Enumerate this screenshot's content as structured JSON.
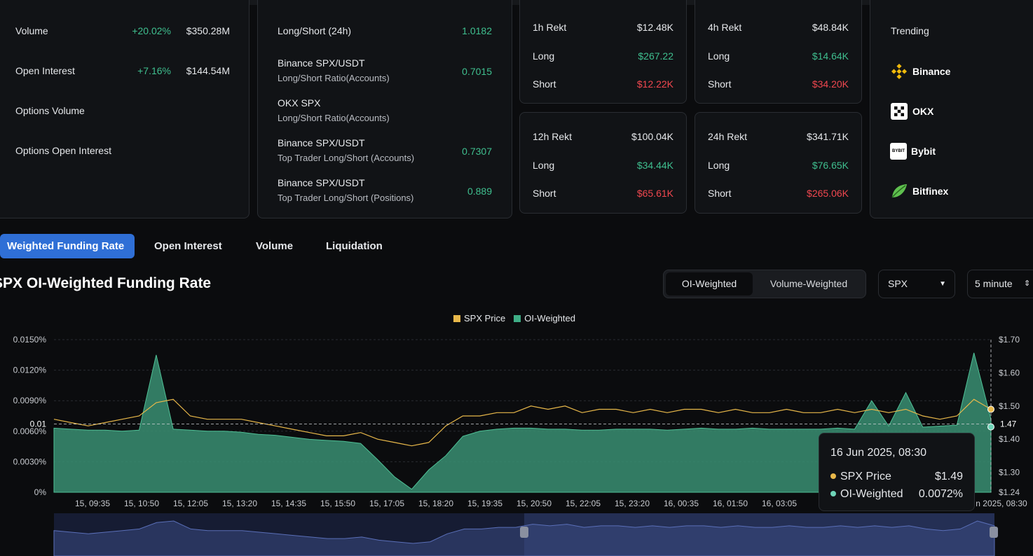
{
  "stats": {
    "rows": [
      {
        "name": "Volume",
        "change": "+20.02%",
        "value": "$350.28M"
      },
      {
        "name": "Open Interest",
        "change": "+7.16%",
        "value": "$144.54M"
      },
      {
        "name": "Options Volume",
        "change": "",
        "value": ""
      },
      {
        "name": "Options Open Interest",
        "change": "",
        "value": ""
      }
    ]
  },
  "long_short": {
    "rows": [
      {
        "line1": "Long/Short (24h)",
        "line2": "",
        "value": "1.0182"
      },
      {
        "line1": "Binance SPX/USDT",
        "line2": "Long/Short Ratio(Accounts)",
        "value": "0.7015"
      },
      {
        "line1": "OKX SPX",
        "line2": "Long/Short Ratio(Accounts)",
        "value": ""
      },
      {
        "line1": "Binance SPX/USDT",
        "line2": "Top Trader Long/Short (Accounts)",
        "value": "0.7307"
      },
      {
        "line1": "Binance SPX/USDT",
        "line2": "Top Trader Long/Short (Positions)",
        "value": "0.889"
      }
    ]
  },
  "rekt": {
    "r1h": {
      "title": "1h Rekt",
      "total": "$12.48K",
      "long_label": "Long",
      "long": "$267.22",
      "short_label": "Short",
      "short": "$12.22K"
    },
    "r4h": {
      "title": "4h Rekt",
      "total": "$48.84K",
      "long_label": "Long",
      "long": "$14.64K",
      "short_label": "Short",
      "short": "$34.20K"
    },
    "r12h": {
      "title": "12h Rekt",
      "total": "$100.04K",
      "long_label": "Long",
      "long": "$34.44K",
      "short_label": "Short",
      "short": "$65.61K"
    },
    "r24h": {
      "title": "24h Rekt",
      "total": "$341.71K",
      "long_label": "Long",
      "long": "$76.65K",
      "short_label": "Short",
      "short": "$265.06K"
    }
  },
  "trending": {
    "title": "Trending",
    "items": [
      {
        "name": "Binance",
        "icon": "binance-icon"
      },
      {
        "name": "OKX",
        "icon": "okx-icon"
      },
      {
        "name": "Bybit",
        "icon": "bybit-icon",
        "icon_text": "BYBIT"
      },
      {
        "name": "Bitfinex",
        "icon": "bitfinex-icon"
      }
    ]
  },
  "tabs": [
    {
      "label": "Weighted Funding Rate",
      "active": true
    },
    {
      "label": "Open Interest",
      "active": false
    },
    {
      "label": "Volume",
      "active": false
    },
    {
      "label": "Liquidation",
      "active": false
    }
  ],
  "chart_header": {
    "title": "SPX OI-Weighted Funding Rate",
    "seg_on": "OI-Weighted",
    "seg_off": "Volume-Weighted",
    "symbol": "SPX",
    "interval": "5 minute"
  },
  "colors": {
    "price": "#e8b84a",
    "oi": "#3fae86",
    "accent": "#2f6fd6",
    "green": "#3fbf8f",
    "red": "#f0474f"
  },
  "tooltip": {
    "date": "16 Jun 2025, 08:30",
    "price_label": "SPX Price",
    "price_value": "$1.49",
    "oi_label": "OI-Weighted",
    "oi_value": "0.0072%"
  },
  "chart_data": {
    "type": "area",
    "series": [
      {
        "name": "SPX Price",
        "axis": "right",
        "kind": "line"
      },
      {
        "name": "OI-Weighted",
        "axis": "left",
        "kind": "area"
      }
    ],
    "left_ticks": [
      "0.0150%",
      "0.0120%",
      "0.0090%",
      "0.0060%",
      "0.0030%",
      "0%"
    ],
    "left_tick_values": [
      0.015,
      0.012,
      0.009,
      0.006,
      0.003,
      0
    ],
    "right_ticks": [
      "$1.70",
      "$1.60",
      "$1.50",
      "$1.40",
      "$1.30",
      "$1.24"
    ],
    "right_tick_values": [
      1.7,
      1.6,
      1.5,
      1.4,
      1.3,
      1.24
    ],
    "ylim_left": [
      0,
      0.015
    ],
    "ylim_right": [
      1.24,
      1.7
    ],
    "crosshair_left_label": "0.01",
    "crosshair_right_label": "1.47",
    "x_labels": [
      "15, 09:35",
      "15, 10:50",
      "15, 12:05",
      "15, 13:20",
      "15, 14:35",
      "15, 15:50",
      "15, 17:05",
      "15, 18:20",
      "15, 19:35",
      "15, 20:50",
      "15, 22:05",
      "15, 23:20",
      "16, 00:35",
      "16, 01:50",
      "16, 03:05",
      "16",
      "n 2025, 08:30"
    ],
    "oi_values": [
      0.0063,
      0.0062,
      0.0061,
      0.0061,
      0.006,
      0.0061,
      0.0135,
      0.0062,
      0.0061,
      0.006,
      0.006,
      0.0059,
      0.0057,
      0.0056,
      0.0054,
      0.0052,
      0.0051,
      0.005,
      0.0048,
      0.0032,
      0.0015,
      0.0003,
      0.0022,
      0.0036,
      0.0055,
      0.006,
      0.0062,
      0.0063,
      0.0063,
      0.0062,
      0.0062,
      0.0061,
      0.0061,
      0.0062,
      0.0062,
      0.0062,
      0.0061,
      0.0062,
      0.0063,
      0.0062,
      0.0062,
      0.0063,
      0.0062,
      0.0062,
      0.0062,
      0.0062,
      0.0063,
      0.0062,
      0.009,
      0.0065,
      0.0098,
      0.0064,
      0.0065,
      0.0066,
      0.0137,
      0.0072
    ],
    "price_values": [
      1.46,
      1.45,
      1.44,
      1.45,
      1.46,
      1.47,
      1.51,
      1.52,
      1.47,
      1.46,
      1.46,
      1.46,
      1.45,
      1.44,
      1.43,
      1.42,
      1.41,
      1.41,
      1.42,
      1.4,
      1.39,
      1.38,
      1.39,
      1.44,
      1.47,
      1.47,
      1.48,
      1.48,
      1.5,
      1.49,
      1.5,
      1.48,
      1.49,
      1.49,
      1.48,
      1.49,
      1.48,
      1.49,
      1.49,
      1.48,
      1.49,
      1.48,
      1.48,
      1.49,
      1.48,
      1.48,
      1.49,
      1.48,
      1.49,
      1.48,
      1.49,
      1.47,
      1.46,
      1.47,
      1.52,
      1.49
    ]
  }
}
